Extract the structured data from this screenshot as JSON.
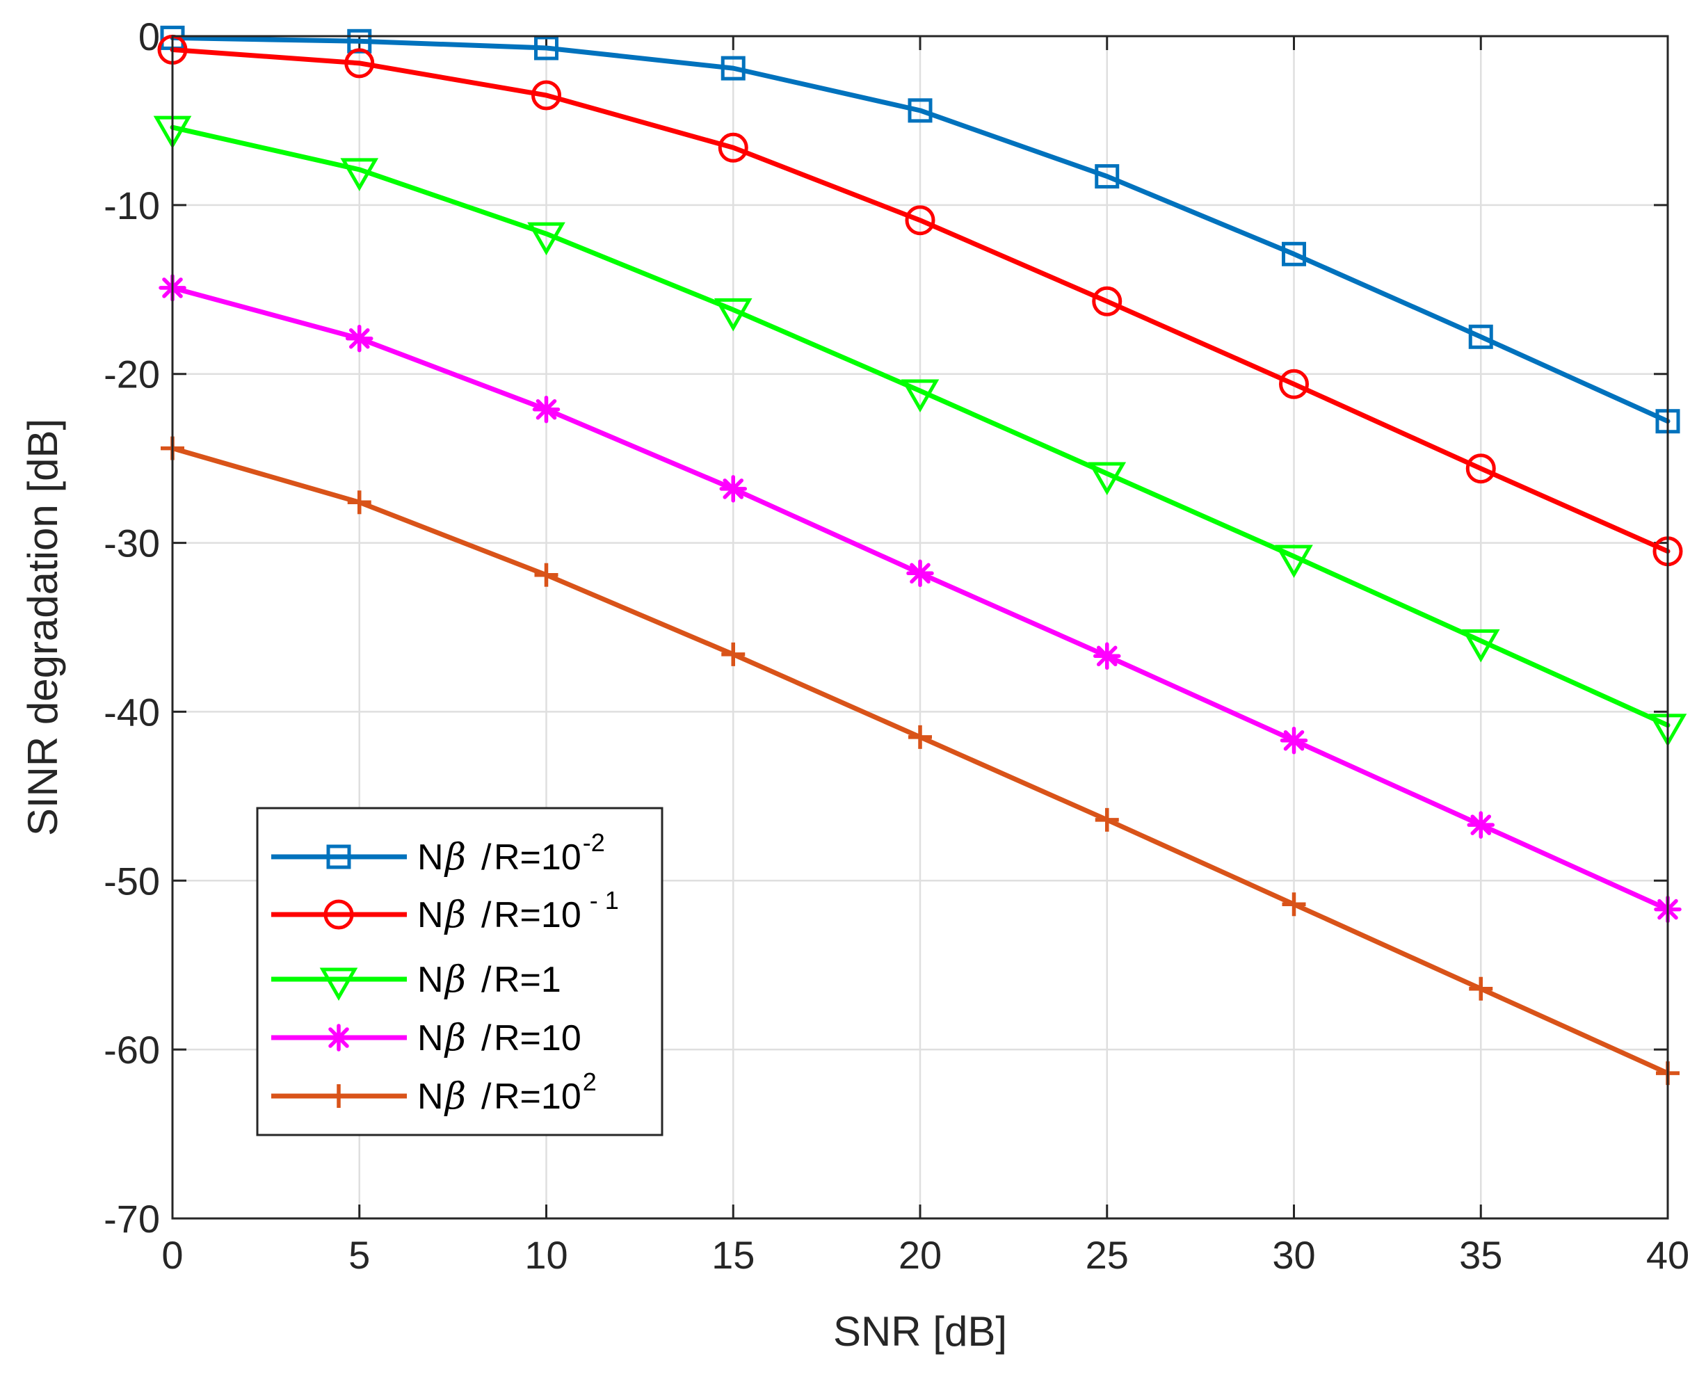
{
  "chart_data": {
    "type": "line",
    "title": "",
    "xlabel": "SNR [dB]",
    "ylabel": "SINR degradation [dB]",
    "xlim": [
      0,
      40
    ],
    "ylim": [
      -70,
      0
    ],
    "grid": true,
    "x": [
      0,
      5,
      10,
      15,
      20,
      25,
      30,
      35,
      40
    ],
    "xticks": [
      "0",
      "5",
      "10",
      "15",
      "20",
      "25",
      "30",
      "35",
      "40"
    ],
    "yticks": [
      "0",
      "-10",
      "-20",
      "-30",
      "-40",
      "-50",
      "-60",
      "-70"
    ],
    "legend_position": "bottom-left",
    "series": [
      {
        "name": "Nβ/R=10^-2",
        "legend": {
          "base": "R=10",
          "exp": "-2"
        },
        "color": "#0072BD",
        "marker": "square",
        "values": [
          -0.1,
          -0.3,
          -0.7,
          -1.9,
          -4.4,
          -8.3,
          -12.9,
          -17.8,
          -22.8
        ]
      },
      {
        "name": "Nβ/R=10^-1",
        "legend": {
          "base": "R=10",
          "exp": " - 1"
        },
        "color": "#FF0000",
        "marker": "circle",
        "values": [
          -0.8,
          -1.6,
          -3.5,
          -6.6,
          -10.9,
          -15.7,
          -20.6,
          -25.6,
          -30.5
        ]
      },
      {
        "name": "Nβ/R=1",
        "legend": {
          "base": "R=1",
          "exp": ""
        },
        "color": "#00FF00",
        "marker": "triangle-down",
        "values": [
          -5.4,
          -7.9,
          -11.7,
          -16.2,
          -21.0,
          -25.9,
          -30.8,
          -35.8,
          -40.8
        ]
      },
      {
        "name": "Nβ/R=10",
        "legend": {
          "base": "R=10",
          "exp": ""
        },
        "color": "#FF00FF",
        "marker": "asterisk",
        "values": [
          -14.9,
          -17.9,
          -22.1,
          -26.8,
          -31.8,
          -36.7,
          -41.7,
          -46.7,
          -51.7
        ]
      },
      {
        "name": "Nβ/R=10^2",
        "legend": {
          "base": "R=10",
          "exp": "2"
        },
        "color": "#D95319",
        "marker": "plus",
        "values": [
          -24.4,
          -27.6,
          -31.9,
          -36.6,
          -41.5,
          -46.4,
          -51.4,
          -56.4,
          -61.4
        ]
      }
    ]
  },
  "legend": {
    "prefix": "N",
    "beta": "β",
    "slash": "/"
  }
}
